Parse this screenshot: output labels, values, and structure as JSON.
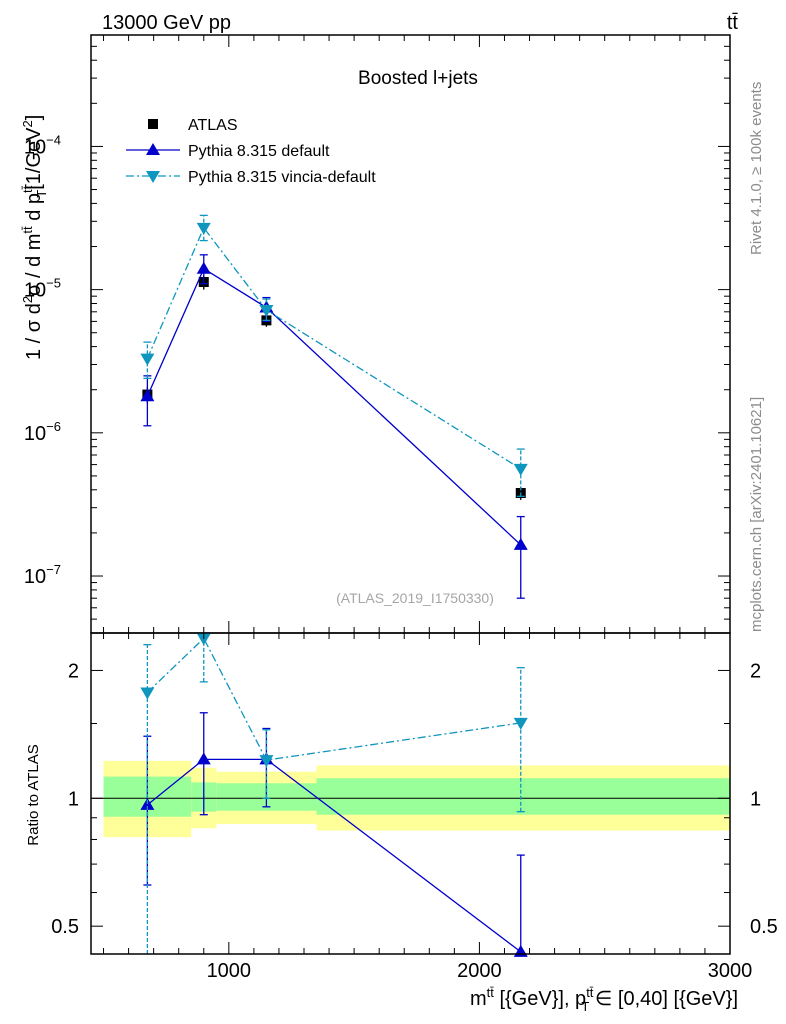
{
  "header": {
    "left": "13000 GeV pp",
    "right": "tt̄"
  },
  "side_labels": {
    "top": "Rivet 4.1.0, ≥ 100k events",
    "bottom": "mcplots.cern.ch [arXiv:2401.10621]"
  },
  "chart_data": [
    {
      "type": "scatter",
      "panel": "main",
      "title": "Boosted l+jets",
      "watermark": "(ATLAS_2019_I1750330)",
      "ylabel": "1 / σ d²σ / d m^tt̄ d p_T^tt̄ [1/GeV²]",
      "yscale": "log",
      "xlim": [
        450,
        3000
      ],
      "ylim": [
        4e-08,
        0.0006
      ],
      "yticks": [
        {
          "v": 1e-07,
          "label": "10",
          "exp": "−7"
        },
        {
          "v": 1e-06,
          "label": "10",
          "exp": "−6"
        },
        {
          "v": 1e-05,
          "label": "10",
          "exp": "−5"
        },
        {
          "v": 0.0001,
          "label": "10",
          "exp": "−4"
        }
      ],
      "series": [
        {
          "name": "ATLAS",
          "color": "#000000",
          "marker": "square",
          "line": "none",
          "x": [
            675,
            900,
            1150,
            2165
          ],
          "y": [
            1.85e-06,
            1.13e-05,
            6.1e-06,
            3.8e-07
          ],
          "ylo": [
            1.6e-06,
            1e-05,
            5.5e-06,
            3.4e-07
          ],
          "yhi": [
            2.1e-06,
            1.27e-05,
            6.7e-06,
            4.2e-07
          ],
          "xlo": [
            675,
            900,
            1150,
            2165
          ],
          "xhi": [
            675,
            900,
            1150,
            2165
          ]
        },
        {
          "name": "Pythia 8.315 default",
          "color": "#0000cc",
          "marker": "triangle-up",
          "line": "solid",
          "x": [
            675,
            900,
            1150,
            2165
          ],
          "y": [
            1.8e-06,
            1.4e-05,
            7.5e-06,
            1.65e-07
          ],
          "ylo": [
            1.12e-06,
            1.1e-05,
            6e-06,
            7e-08
          ],
          "yhi": [
            2.5e-06,
            1.75e-05,
            8.8e-06,
            2.6e-07
          ],
          "xlo": [
            675,
            900,
            1150,
            2165
          ],
          "xhi": [
            675,
            900,
            1150,
            2165
          ]
        },
        {
          "name": "Pythia 8.315 vincia-default",
          "color": "#0f96be",
          "marker": "triangle-down",
          "line": "dashdot",
          "x": [
            675,
            900,
            1150,
            2165
          ],
          "y": [
            3.3e-06,
            2.7e-05,
            7.2e-06,
            5.6e-07
          ],
          "ylo": [
            2.4e-06,
            2.2e-05,
            6.1e-06,
            3.6e-07
          ],
          "yhi": [
            4.3e-06,
            3.3e-05,
            8.6e-06,
            7.7e-07
          ],
          "xlo": [
            675,
            900,
            1150,
            2165
          ],
          "xhi": [
            675,
            900,
            1150,
            2165
          ]
        }
      ]
    },
    {
      "type": "scatter",
      "panel": "ratio",
      "ylabel": "Ratio to ATLAS",
      "xlabel": "m^tt̄ [{GeV}], p_T^tt̄ ∈ [0,40] [{GeV}]",
      "yscale": "log",
      "xlim": [
        450,
        3000
      ],
      "ylim": [
        0.43,
        2.45
      ],
      "reference": 1,
      "xticks": [
        {
          "v": 1000,
          "label": "1000"
        },
        {
          "v": 2000,
          "label": "2000"
        },
        {
          "v": 3000,
          "label": "3000"
        }
      ],
      "yticks": [
        {
          "v": 0.5,
          "label": "0.5"
        },
        {
          "v": 1,
          "label": "1"
        },
        {
          "v": 2,
          "label": "2"
        }
      ],
      "bands": [
        {
          "x0": 500,
          "x1": 850,
          "inner": [
            0.905,
            1.125
          ],
          "outer": [
            0.81,
            1.225
          ]
        },
        {
          "x0": 850,
          "x1": 950,
          "inner": [
            0.93,
            1.09
          ],
          "outer": [
            0.85,
            1.18
          ]
        },
        {
          "x0": 950,
          "x1": 1350,
          "inner": [
            0.935,
            1.085
          ],
          "outer": [
            0.87,
            1.155
          ]
        },
        {
          "x0": 1350,
          "x1": 3000,
          "inner": [
            0.915,
            1.115
          ],
          "outer": [
            0.84,
            1.195
          ]
        }
      ],
      "band_colors": {
        "inner": "#99ff99",
        "outer": "#ffff99"
      },
      "series": [
        {
          "name": "Pythia 8.315 default",
          "color": "#0000cc",
          "marker": "triangle-up",
          "line": "solid",
          "x": [
            675,
            900,
            1150,
            2165
          ],
          "y": [
            0.965,
            1.235,
            1.235,
            0.435
          ],
          "ylo": [
            0.625,
            0.915,
            0.955,
            0.0
          ],
          "yhi": [
            1.4,
            1.59,
            1.46,
            0.735
          ]
        },
        {
          "name": "Pythia 8.315 vincia-default",
          "color": "#0f96be",
          "marker": "triangle-down",
          "line": "dashdot",
          "x": [
            675,
            900,
            1150,
            2165
          ],
          "y": [
            1.775,
            2.38,
            1.23,
            1.505
          ],
          "ylo": [
            0,
            1.88,
            1.0,
            0.93
          ],
          "yhi": [
            2.3,
            2.45,
            1.45,
            2.03
          ]
        }
      ]
    }
  ]
}
